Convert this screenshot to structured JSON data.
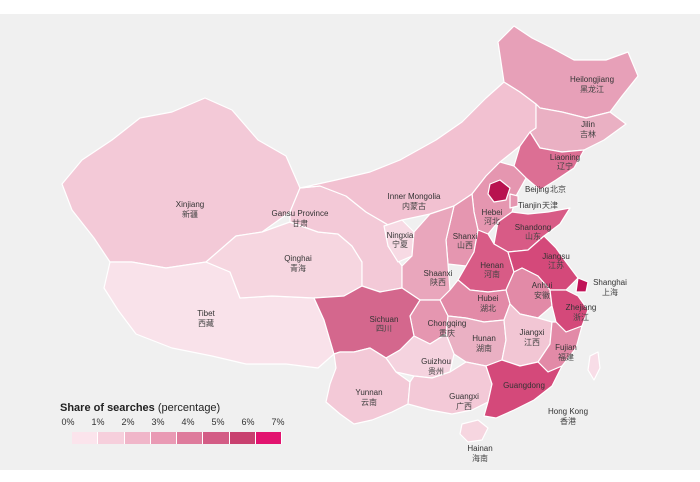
{
  "legend": {
    "title_bold": "Share of searches",
    "title_rest": "(percentage)",
    "ticks": [
      "0%",
      "1%",
      "2%",
      "3%",
      "4%",
      "5%",
      "6%",
      "7%"
    ],
    "colors": [
      "#fbe4ec",
      "#f6cfdc",
      "#f0b6c9",
      "#e99ab4",
      "#de7b9c",
      "#d35c85",
      "#c8406f",
      "#e2136f"
    ]
  },
  "provinces": {
    "xinjiang": {
      "en": "Xinjiang",
      "zh": "新疆"
    },
    "tibet": {
      "en": "Tibet",
      "zh": "西藏"
    },
    "qinghai": {
      "en": "Qinghai",
      "zh": "青海"
    },
    "gansu": {
      "en": "Gansu Province",
      "zh": "甘肃"
    },
    "inner_mongolia": {
      "en": "Inner Mongolia",
      "zh": "内蒙古"
    },
    "ningxia": {
      "en": "Ningxia",
      "zh": "宁夏"
    },
    "heilongjiang": {
      "en": "Heilongjiang",
      "zh": "黑龙江"
    },
    "jilin": {
      "en": "Jilin",
      "zh": "吉林"
    },
    "liaoning": {
      "en": "Liaoning",
      "zh": "辽宁"
    },
    "beijing": {
      "en": "Beijing",
      "zh": "北京"
    },
    "tianjin": {
      "en": "Tianjin",
      "zh": "天津"
    },
    "hebei": {
      "en": "Hebei",
      "zh": "河北"
    },
    "shanxi": {
      "en": "Shanxi",
      "zh": "山西"
    },
    "shandong": {
      "en": "Shandong",
      "zh": "山东"
    },
    "shaanxi": {
      "en": "Shaanxi",
      "zh": "陕西"
    },
    "henan": {
      "en": "Henan",
      "zh": "河南"
    },
    "jiangsu": {
      "en": "Jiangsu",
      "zh": "江苏"
    },
    "shanghai": {
      "en": "Shanghai",
      "zh": "上海"
    },
    "anhui": {
      "en": "Anhui",
      "zh": "安徽"
    },
    "hubei": {
      "en": "Hubei",
      "zh": "湖北"
    },
    "sichuan": {
      "en": "Sichuan",
      "zh": "四川"
    },
    "chongqing": {
      "en": "Chongqing",
      "zh": "重庆"
    },
    "zhejiang": {
      "en": "Zhejiang",
      "zh": "浙江"
    },
    "jiangxi": {
      "en": "Jiangxi",
      "zh": "江西"
    },
    "hunan": {
      "en": "Hunan",
      "zh": "湖南"
    },
    "fujian": {
      "en": "Fujian",
      "zh": "福建"
    },
    "guizhou": {
      "en": "Guizhou",
      "zh": "贵州"
    },
    "yunnan": {
      "en": "Yunnan",
      "zh": "云南"
    },
    "guangxi": {
      "en": "Guangxi",
      "zh": "广西"
    },
    "guangdong": {
      "en": "Guangdong",
      "zh": "广东"
    },
    "hong_kong": {
      "en": "Hong Kong",
      "zh": "香港"
    },
    "hainan": {
      "en": "Hainan",
      "zh": "海南"
    }
  }
}
